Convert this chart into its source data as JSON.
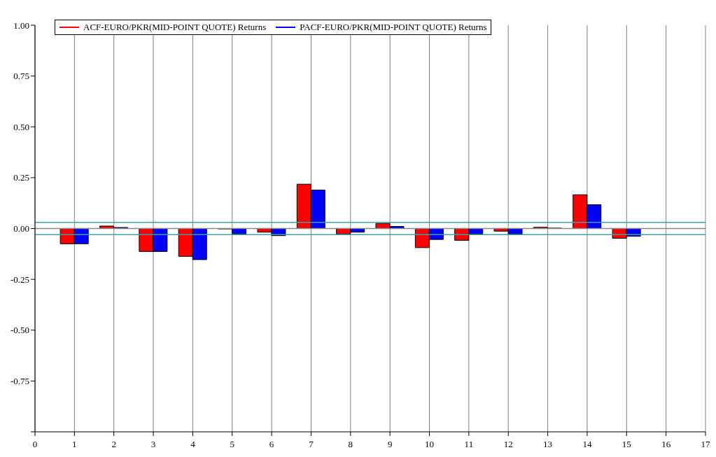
{
  "chart_data": {
    "type": "bar",
    "x": [
      1,
      2,
      3,
      4,
      5,
      6,
      7,
      8,
      9,
      10,
      11,
      12,
      13,
      14,
      15
    ],
    "series": [
      {
        "name": "ACF-EURO/PKR(MID-POINT QUOTE) Returns",
        "color": "#ff0000",
        "values": [
          -0.075,
          0.012,
          -0.113,
          -0.137,
          -0.002,
          -0.018,
          0.218,
          -0.027,
          0.025,
          -0.094,
          -0.058,
          -0.013,
          0.006,
          0.166,
          -0.048
        ]
      },
      {
        "name": "PACF-EURO/PKR(MID-POINT QUOTE) Returns",
        "color": "#0000ff",
        "values": [
          -0.075,
          0.005,
          -0.113,
          -0.153,
          -0.027,
          -0.035,
          0.189,
          -0.018,
          0.01,
          -0.054,
          -0.027,
          -0.027,
          0.002,
          0.117,
          -0.038
        ]
      }
    ],
    "xlim": [
      0,
      17
    ],
    "xticks": [
      0,
      1,
      2,
      3,
      4,
      5,
      6,
      7,
      8,
      9,
      10,
      11,
      12,
      13,
      14,
      15,
      16,
      17
    ],
    "ylim": [
      -1,
      1
    ],
    "yticks": [
      {
        "value": -1,
        "label": null
      },
      {
        "value": -0.75,
        "label": "-0.75"
      },
      {
        "value": -0.5,
        "label": "-0.50"
      },
      {
        "value": -0.25,
        "label": "-0.25"
      },
      {
        "value": 0,
        "label": "0.00"
      },
      {
        "value": 0.25,
        "label": "0.25"
      },
      {
        "value": 0.5,
        "label": "0.50"
      },
      {
        "value": 0.75,
        "label": "0.75"
      },
      {
        "value": 1,
        "label": "1.00"
      }
    ],
    "ref_lines": [
      {
        "axis": "y",
        "value": 0,
        "color": "#888888"
      },
      {
        "axis": "y",
        "value": 0.03,
        "color": "#40a0a0"
      },
      {
        "axis": "y",
        "value": -0.03,
        "color": "#40a0a0"
      }
    ],
    "grid": "x",
    "legend": "top left"
  }
}
